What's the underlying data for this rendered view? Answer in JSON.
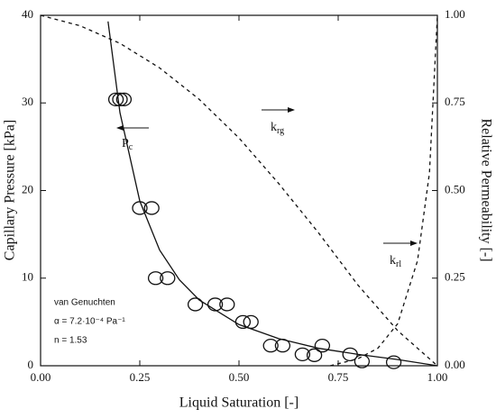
{
  "chart_data": {
    "type": "scatter",
    "xlabel": "Liquid Saturation [-]",
    "ylabel": "Capillary Pressure [kPa]",
    "y2label": "Relative Permeability [-]",
    "xlim": [
      0,
      1
    ],
    "ylim": [
      0,
      40
    ],
    "y2lim": [
      0,
      1
    ],
    "xticks": [
      {
        "value": 0,
        "label": "0.00"
      },
      {
        "value": 0.25,
        "label": "0.25"
      },
      {
        "value": 0.5,
        "label": "0.50"
      },
      {
        "value": 0.75,
        "label": "0.75"
      },
      {
        "value": 1,
        "label": "1.00"
      }
    ],
    "yticks": [
      0,
      10,
      20,
      30,
      40
    ],
    "y2ticks": [
      {
        "value": 0,
        "label": "0.00"
      },
      {
        "value": 0.25,
        "label": "0.25"
      },
      {
        "value": 0.5,
        "label": "0.50"
      },
      {
        "value": 0.75,
        "label": "0.75"
      },
      {
        "value": 1,
        "label": "1.00"
      }
    ],
    "series": [
      {
        "color": "#111111",
        "marker": "circle",
        "x": [
          0.19,
          0.2,
          0.21,
          0.25,
          0.28,
          0.29,
          0.32,
          0.39,
          0.44,
          0.47,
          0.51,
          0.53,
          0.58,
          0.61,
          0.66,
          0.69,
          0.71,
          0.78,
          0.81,
          0.89
        ],
        "values": [
          30.4,
          30.4,
          30.4,
          18,
          18,
          10,
          10,
          7,
          7,
          7,
          5,
          5,
          2.3,
          2.3,
          1.3,
          1.2,
          2.3,
          1.3,
          0.5,
          0.4
        ]
      },
      {
        "color": "#111111",
        "line_style": "solid",
        "x": [
          0.17,
          0.2,
          0.25,
          0.3,
          0.35,
          0.4,
          0.5,
          0.6,
          0.7,
          0.8,
          0.9,
          1.0
        ],
        "values": [
          39.3,
          28.9,
          18.8,
          13.2,
          9.8,
          7.5,
          4.7,
          3.1,
          2.0,
          1.3,
          0.71,
          0
        ]
      },
      {
        "color": "#111111",
        "line_style": "dashed",
        "axis": "y2",
        "x": [
          0,
          0.1,
          0.2,
          0.3,
          0.4,
          0.5,
          0.6,
          0.7,
          0.8,
          0.9,
          1.0
        ],
        "values": [
          1.0,
          0.97,
          0.92,
          0.85,
          0.76,
          0.65,
          0.52,
          0.38,
          0.23,
          0.1,
          0
        ]
      },
      {
        "color": "#111111",
        "line_style": "dashed",
        "axis": "y2",
        "x": [
          0.73,
          0.8,
          0.85,
          0.9,
          0.95,
          0.98,
          1.0
        ],
        "values": [
          0,
          0.02,
          0.05,
          0.12,
          0.3,
          0.55,
          1.0
        ]
      }
    ],
    "annotations": {
      "pc": {
        "main": "P",
        "sub": "c"
      },
      "krg": {
        "main": "k",
        "sub": "rg"
      },
      "krl": {
        "main": "k",
        "sub": "rl"
      },
      "model": "van Genuchten",
      "alpha": "α = 7.2·10⁻⁴ Pa⁻¹",
      "n": "n = 1.53"
    }
  }
}
